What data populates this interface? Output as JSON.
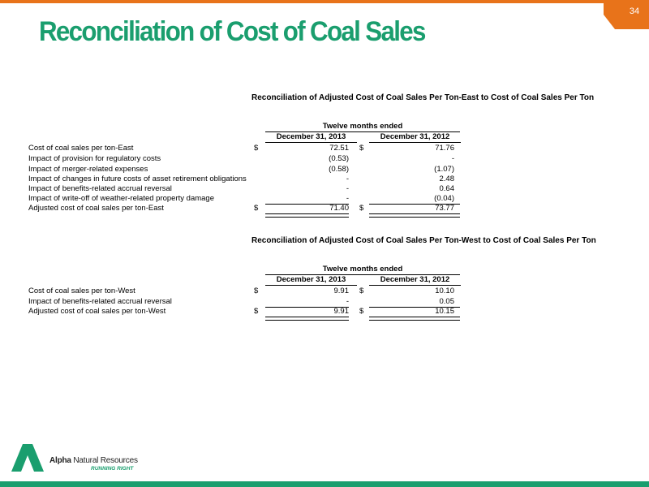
{
  "header": {
    "title": "Reconciliation of Cost of Coal Sales",
    "page_number": "34"
  },
  "east": {
    "title": "Reconciliation of Adjusted Cost of Coal Sales Per Ton-East to Cost of Coal Sales Per Ton",
    "period": "Twelve months ended",
    "col1": "December 31, 2013",
    "col2": "December 31, 2012",
    "rows": [
      {
        "label": "Cost of coal sales per ton-East",
        "cur1": "$",
        "v1": "72.51",
        "cur2": "$",
        "v2": "71.76"
      },
      {
        "label": "Impact of provision for regulatory costs",
        "cur1": "",
        "v1": "(0.53)",
        "cur2": "",
        "v2": "-"
      },
      {
        "label": "Impact of merger-related expenses",
        "cur1": "",
        "v1": "(0.58)",
        "cur2": "",
        "v2": "(1.07)"
      },
      {
        "label": "Impact of changes in future costs of asset retirement obligations",
        "cur1": "",
        "v1": "-",
        "cur2": "",
        "v2": "2.48"
      },
      {
        "label": "Impact of benefits-related accrual reversal",
        "cur1": "",
        "v1": "-",
        "cur2": "",
        "v2": "0.64"
      },
      {
        "label": "Impact of write-off of weather-related property damage",
        "cur1": "",
        "v1": "-",
        "cur2": "",
        "v2": "(0.04)"
      },
      {
        "label": "Adjusted cost of coal sales per ton-East",
        "cur1": "$",
        "v1": "71.40",
        "cur2": "$",
        "v2": "73.77"
      }
    ]
  },
  "west": {
    "title": "Reconciliation of Adjusted Cost of Coal Sales Per Ton-West to Cost of Coal Sales Per Ton",
    "period": "Twelve months ended",
    "col1": "December 31, 2013",
    "col2": "December 31, 2012",
    "rows": [
      {
        "label": "Cost of coal sales per ton-West",
        "cur1": "$",
        "v1": "9.91",
        "cur2": "$",
        "v2": "10.10"
      },
      {
        "label": "Impact of benefits-related accrual reversal",
        "cur1": "",
        "v1": "-",
        "cur2": "",
        "v2": "0.05"
      },
      {
        "label": "Adjusted cost of coal sales per ton-West",
        "cur1": "$",
        "v1": "9.91",
        "cur2": "$",
        "v2": "10.15"
      }
    ]
  },
  "footer": {
    "logo_name_bold": "Alpha",
    "logo_name_rest": " Natural Resources",
    "tagline": "RUNNING RIGHT"
  },
  "colors": {
    "accent_orange": "#e8731a",
    "brand_green": "#1a9e6e"
  }
}
